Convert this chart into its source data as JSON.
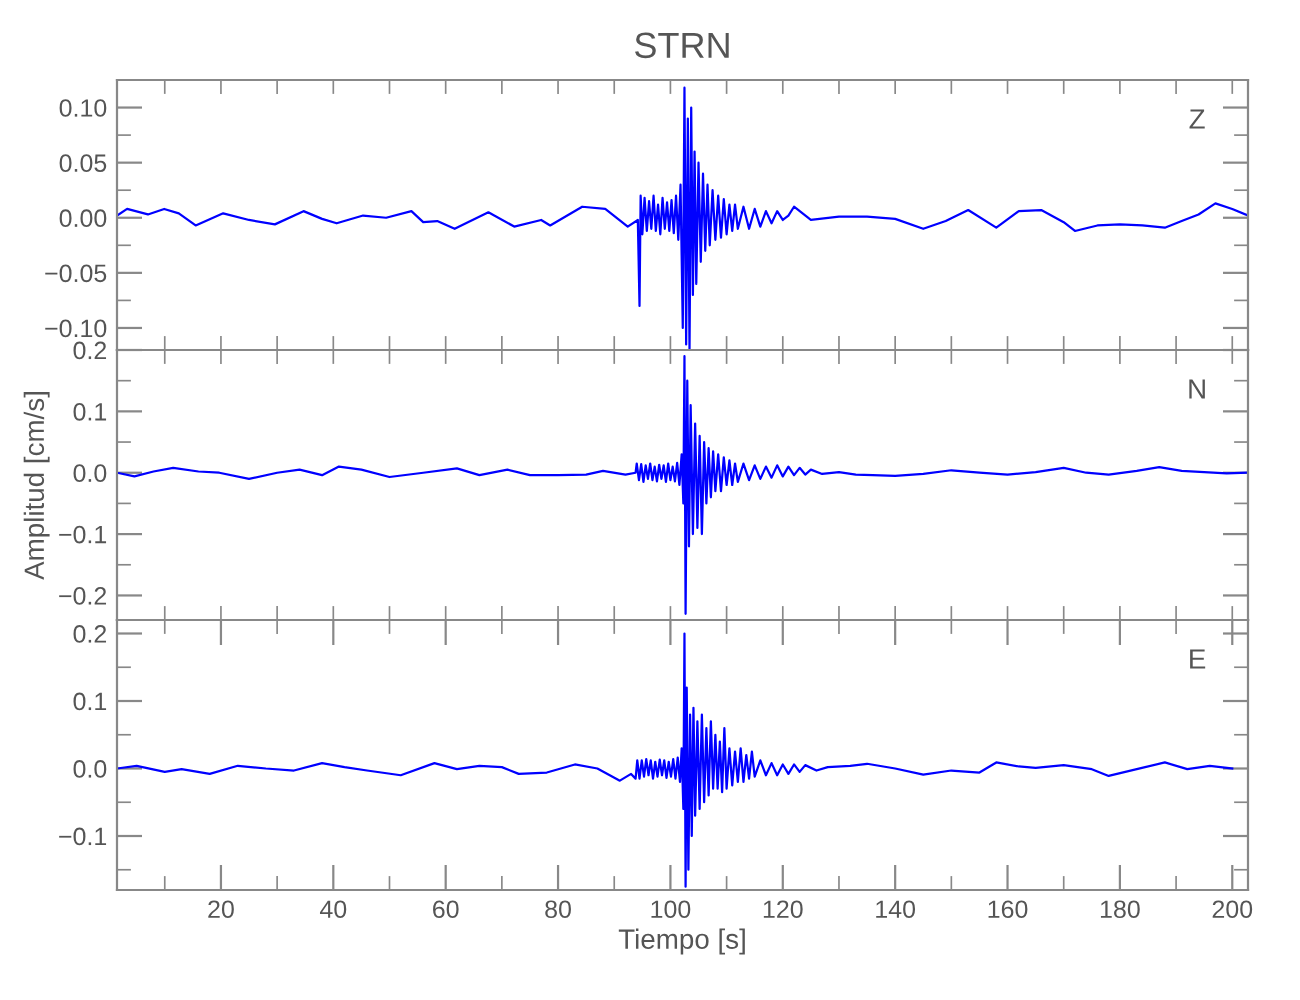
{
  "chart_data": [
    {
      "type": "line",
      "title": "STRN",
      "annotations": [
        "Z"
      ],
      "tick_labels": "y",
      "xlim": [
        1.5,
        202.8
      ],
      "ylim": [
        -0.12,
        0.125
      ],
      "xticks": [
        {
          "value": 10,
          "label": null
        },
        {
          "value": 20,
          "label": null
        },
        {
          "value": 30,
          "label": null
        },
        {
          "value": 40,
          "label": null
        },
        {
          "value": 50,
          "label": null
        },
        {
          "value": 60,
          "label": null
        },
        {
          "value": 70,
          "label": null
        },
        {
          "value": 80,
          "label": null
        },
        {
          "value": 90,
          "label": null
        },
        {
          "value": 100,
          "label": null
        },
        {
          "value": 110,
          "label": null
        },
        {
          "value": 120,
          "label": null
        },
        {
          "value": 130,
          "label": null
        },
        {
          "value": 140,
          "label": null
        },
        {
          "value": 150,
          "label": null
        },
        {
          "value": 160,
          "label": null
        },
        {
          "value": 170,
          "label": null
        },
        {
          "value": 180,
          "label": null
        },
        {
          "value": 190,
          "label": null
        },
        {
          "value": 200,
          "label": null
        }
      ],
      "yticks": [
        {
          "value": -0.1,
          "label": "−0.10"
        },
        {
          "value": -0.075,
          "label": null
        },
        {
          "value": -0.05,
          "label": "−0.05"
        },
        {
          "value": -0.025,
          "label": null
        },
        {
          "value": 0,
          "label": "0.00"
        },
        {
          "value": 0.025,
          "label": null
        },
        {
          "value": 0.05,
          "label": "0.05"
        },
        {
          "value": 0.075,
          "label": null
        },
        {
          "value": 0.1,
          "label": "0.10"
        }
      ],
      "series": [
        {
          "color": "#0000ff",
          "x": [
            1.5,
            3.3,
            7,
            9.9,
            12.5,
            15.5,
            20.4,
            25,
            29.6,
            34.7,
            38,
            40.6,
            45.3,
            49.4,
            53.9,
            56,
            58.5,
            61.6,
            67.6,
            72.2,
            77,
            78.6,
            84.3,
            88.4,
            92.4,
            94.2,
            94.5,
            94.7,
            95,
            95.4,
            95.8,
            96.2,
            96.6,
            97,
            97.4,
            97.8,
            98.2,
            98.6,
            99,
            99.4,
            99.8,
            100.2,
            100.6,
            101,
            101.4,
            101.8,
            102.2,
            102.5,
            102.8,
            103.1,
            103.4,
            103.7,
            104,
            104.3,
            104.6,
            105,
            105.4,
            105.8,
            106.2,
            106.6,
            107,
            107.5,
            108,
            108.5,
            109,
            109.5,
            110,
            110.5,
            111,
            111.5,
            112,
            113,
            114,
            115,
            116,
            117,
            118,
            119,
            120,
            121,
            122,
            125,
            130,
            135,
            140,
            145,
            149,
            153,
            158,
            162,
            166,
            170,
            172,
            176,
            180,
            184,
            188,
            191,
            194,
            197,
            200,
            202.8
          ],
          "values": [
            0.002,
            0.008,
            0.003,
            0.008,
            0.004,
            -0.007,
            0.004,
            -0.002,
            -0.006,
            0.006,
            -0.001,
            -0.005,
            0.002,
            0.0,
            0.006,
            -0.004,
            -0.003,
            -0.01,
            0.005,
            -0.008,
            -0.002,
            -0.007,
            0.01,
            0.008,
            -0.008,
            -0.002,
            -0.08,
            0.02,
            -0.015,
            0.018,
            -0.012,
            0.015,
            -0.01,
            0.02,
            -0.012,
            0.012,
            -0.015,
            0.018,
            -0.01,
            0.014,
            -0.012,
            0.016,
            -0.014,
            0.02,
            -0.02,
            0.03,
            -0.1,
            0.118,
            -0.115,
            0.09,
            -0.12,
            0.1,
            -0.07,
            0.06,
            -0.06,
            0.05,
            -0.04,
            0.04,
            -0.03,
            0.03,
            -0.025,
            0.025,
            -0.02,
            0.02,
            -0.018,
            0.017,
            -0.015,
            0.012,
            -0.012,
            0.012,
            -0.01,
            0.01,
            -0.01,
            0.008,
            -0.008,
            0.006,
            -0.005,
            0.006,
            -0.002,
            0.002,
            0.01,
            -0.002,
            0.001,
            0.001,
            -0.001,
            -0.01,
            -0.003,
            0.007,
            -0.009,
            0.006,
            0.007,
            -0.004,
            -0.012,
            -0.007,
            -0.006,
            -0.007,
            -0.009,
            -0.003,
            0.003,
            0.013,
            0.008,
            0.002
          ]
        }
      ]
    },
    {
      "type": "line",
      "ylabel": "Amplitud [cm/s]",
      "annotations": [
        "N"
      ],
      "tick_labels": "y",
      "xlim": [
        1.5,
        202.8
      ],
      "ylim": [
        -0.24,
        0.2
      ],
      "xticks": [
        {
          "value": 10,
          "label": null
        },
        {
          "value": 20,
          "label": null
        },
        {
          "value": 30,
          "label": null
        },
        {
          "value": 40,
          "label": null
        },
        {
          "value": 50,
          "label": null
        },
        {
          "value": 60,
          "label": null
        },
        {
          "value": 70,
          "label": null
        },
        {
          "value": 80,
          "label": null
        },
        {
          "value": 90,
          "label": null
        },
        {
          "value": 100,
          "label": null
        },
        {
          "value": 110,
          "label": null
        },
        {
          "value": 120,
          "label": null
        },
        {
          "value": 130,
          "label": null
        },
        {
          "value": 140,
          "label": null
        },
        {
          "value": 150,
          "label": null
        },
        {
          "value": 160,
          "label": null
        },
        {
          "value": 170,
          "label": null
        },
        {
          "value": 180,
          "label": null
        },
        {
          "value": 190,
          "label": null
        },
        {
          "value": 200,
          "label": null
        }
      ],
      "yticks": [
        {
          "value": -0.2,
          "label": "−0.2"
        },
        {
          "value": -0.15,
          "label": null
        },
        {
          "value": -0.1,
          "label": "−0.1"
        },
        {
          "value": -0.05,
          "label": null
        },
        {
          "value": 0,
          "label": "0.0"
        },
        {
          "value": 0.05,
          "label": null
        },
        {
          "value": 0.1,
          "label": "0.1"
        },
        {
          "value": 0.15,
          "label": null
        },
        {
          "value": 0.2,
          "label": "0.2"
        }
      ],
      "series": [
        {
          "color": "#0000ff",
          "x": [
            1.5,
            4.6,
            8,
            11.5,
            16,
            19.7,
            25,
            30,
            34,
            38,
            41,
            45,
            50,
            56,
            62,
            66,
            71,
            75,
            80,
            85,
            88,
            92,
            93.8,
            94,
            94.4,
            94.8,
            95.2,
            95.6,
            96,
            96.4,
            96.8,
            97.2,
            97.6,
            98,
            98.4,
            98.8,
            99.2,
            99.6,
            100,
            100.4,
            100.8,
            101.2,
            101.6,
            102,
            102.3,
            102.5,
            102.7,
            103,
            103.3,
            103.6,
            104,
            104.4,
            104.8,
            105.2,
            105.6,
            106,
            106.4,
            106.8,
            107.2,
            107.6,
            108,
            108.5,
            109,
            109.5,
            110,
            110.5,
            111,
            111.5,
            112,
            113,
            114,
            115,
            116,
            117,
            118,
            119,
            120,
            121,
            122,
            123,
            124,
            125,
            127,
            130,
            133,
            136,
            140,
            145,
            150,
            155,
            160,
            165,
            170,
            174,
            178,
            183,
            187,
            191,
            195,
            199,
            202.8
          ],
          "values": [
            0.0,
            -0.006,
            0.002,
            0.008,
            0.002,
            0.0,
            -0.01,
            0.0,
            0.005,
            -0.004,
            0.01,
            0.005,
            -0.007,
            0.0,
            0.007,
            -0.004,
            0.005,
            -0.004,
            -0.004,
            -0.003,
            0.003,
            -0.003,
            0.0,
            0.015,
            -0.012,
            0.014,
            -0.015,
            0.012,
            -0.01,
            0.015,
            -0.012,
            0.01,
            -0.014,
            0.013,
            -0.01,
            0.012,
            -0.015,
            0.015,
            -0.012,
            0.01,
            -0.014,
            0.016,
            -0.02,
            0.03,
            -0.05,
            0.19,
            -0.23,
            0.15,
            -0.12,
            0.11,
            -0.1,
            0.08,
            -0.09,
            0.06,
            -0.1,
            0.05,
            -0.05,
            0.04,
            -0.04,
            0.035,
            -0.03,
            0.03,
            -0.03,
            0.025,
            -0.02,
            0.02,
            -0.02,
            0.015,
            -0.015,
            0.015,
            -0.012,
            0.012,
            -0.01,
            0.01,
            -0.008,
            0.012,
            -0.006,
            0.01,
            -0.004,
            0.008,
            -0.003,
            0.005,
            -0.002,
            0.001,
            -0.003,
            -0.004,
            -0.005,
            -0.002,
            0.004,
            0.0,
            -0.003,
            0.001,
            0.008,
            0.0,
            -0.003,
            0.003,
            0.009,
            0.003,
            0.001,
            -0.001,
            0.0
          ]
        }
      ]
    },
    {
      "type": "line",
      "xlabel": "Tiempo [s]",
      "annotations": [
        "E"
      ],
      "xlim": [
        1.5,
        202.8
      ],
      "ylim": [
        -0.18,
        0.22
      ],
      "xticks": [
        {
          "value": 10,
          "label": null
        },
        20,
        {
          "value": 30,
          "label": null
        },
        40,
        {
          "value": 50,
          "label": null
        },
        60,
        {
          "value": 70,
          "label": null
        },
        80,
        {
          "value": 90,
          "label": null
        },
        100,
        {
          "value": 110,
          "label": null
        },
        120,
        {
          "value": 130,
          "label": null
        },
        140,
        {
          "value": 150,
          "label": null
        },
        160,
        {
          "value": 170,
          "label": null
        },
        180,
        {
          "value": 190,
          "label": null
        },
        200
      ],
      "yticks": [
        {
          "value": -0.15,
          "label": null
        },
        {
          "value": -0.1,
          "label": "−0.1"
        },
        {
          "value": -0.05,
          "label": null
        },
        {
          "value": 0,
          "label": "0.0"
        },
        {
          "value": 0.05,
          "label": null
        },
        {
          "value": 0.1,
          "label": "0.1"
        },
        {
          "value": 0.15,
          "label": null
        },
        {
          "value": 0.2,
          "label": "0.2"
        }
      ],
      "series": [
        {
          "color": "#0000ff",
          "x": [
            1.5,
            5,
            10,
            13,
            18,
            23,
            28,
            33,
            38,
            42,
            46,
            52,
            58,
            62,
            66,
            70,
            73,
            78,
            83,
            87,
            91,
            93,
            93.8,
            94.1,
            94.5,
            94.9,
            95.3,
            95.7,
            96.1,
            96.5,
            96.9,
            97.3,
            97.7,
            98.1,
            98.5,
            98.9,
            99.3,
            99.7,
            100.1,
            100.5,
            100.9,
            101.3,
            101.7,
            102,
            102.3,
            102.5,
            102.7,
            102.9,
            103.2,
            103.5,
            103.8,
            104.1,
            104.4,
            104.8,
            105.2,
            105.6,
            106,
            106.4,
            106.8,
            107.2,
            107.6,
            108,
            108.4,
            108.8,
            109.2,
            109.6,
            110,
            110.5,
            111,
            111.5,
            112,
            112.5,
            113,
            113.5,
            114,
            114.5,
            115,
            116,
            117,
            118,
            119,
            120,
            121,
            122,
            123,
            124,
            126,
            128,
            132,
            135,
            140,
            145,
            150,
            155,
            158,
            162,
            165,
            170,
            175,
            178,
            183,
            188,
            192,
            196,
            200
          ],
          "values": [
            0.0,
            0.004,
            -0.005,
            -0.001,
            -0.008,
            0.004,
            0.0,
            -0.003,
            0.008,
            0.002,
            -0.003,
            -0.01,
            0.008,
            -0.001,
            0.004,
            0.002,
            -0.008,
            -0.006,
            0.006,
            0.0,
            -0.018,
            -0.008,
            -0.015,
            0.012,
            -0.015,
            0.012,
            -0.012,
            0.014,
            -0.01,
            0.012,
            -0.015,
            0.01,
            -0.012,
            0.013,
            -0.01,
            0.012,
            -0.014,
            0.01,
            -0.012,
            0.014,
            -0.015,
            0.016,
            -0.02,
            0.03,
            -0.06,
            0.2,
            -0.175,
            0.12,
            -0.15,
            0.08,
            -0.1,
            0.09,
            -0.07,
            0.07,
            -0.06,
            0.08,
            -0.05,
            0.06,
            -0.04,
            0.07,
            -0.03,
            0.05,
            -0.03,
            0.04,
            -0.035,
            0.06,
            -0.03,
            0.03,
            -0.025,
            0.025,
            -0.02,
            0.03,
            -0.02,
            0.02,
            -0.015,
            0.025,
            -0.012,
            0.012,
            -0.01,
            0.008,
            -0.01,
            0.006,
            -0.008,
            0.006,
            -0.005,
            0.005,
            -0.003,
            0.002,
            0.004,
            0.007,
            0.0,
            -0.009,
            -0.003,
            -0.006,
            0.009,
            0.003,
            0.001,
            0.005,
            -0.001,
            -0.011,
            -0.001,
            0.009,
            -0.001,
            0.004,
            0.0
          ]
        }
      ]
    }
  ]
}
